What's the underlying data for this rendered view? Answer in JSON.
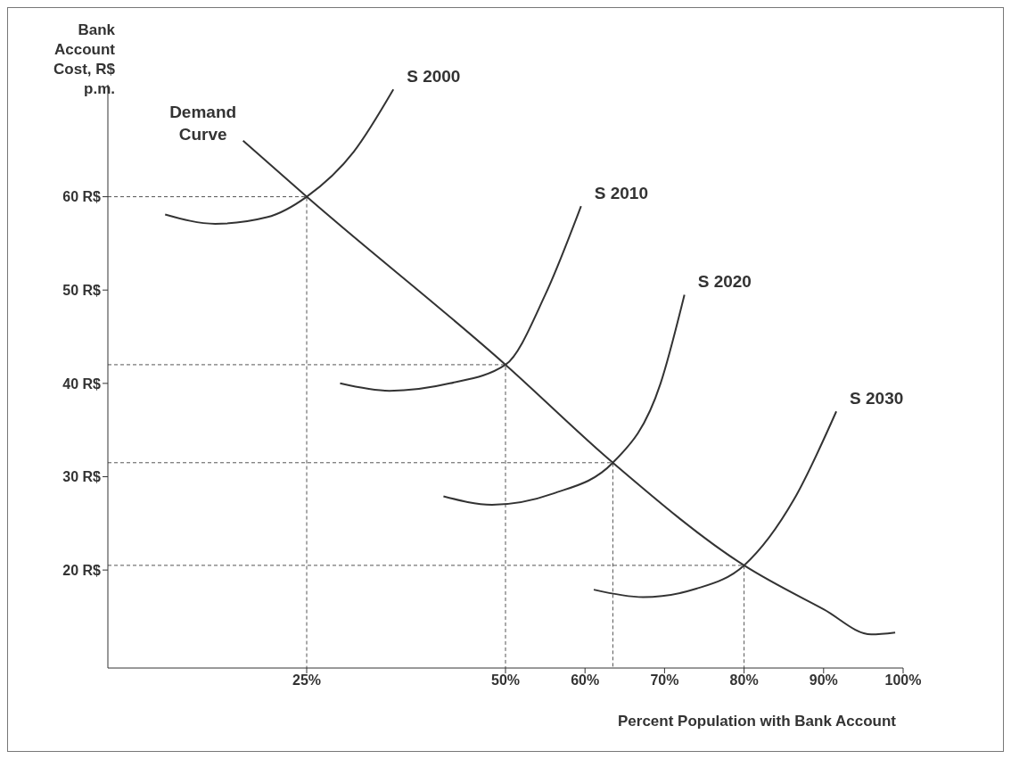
{
  "chart_data": {
    "type": "line",
    "xlabel": "Percent Population with Bank Account",
    "ylabel": "Bank Account Cost, R$ p.m.",
    "xlim": [
      0,
      100
    ],
    "ylim": [
      9.5,
      72
    ],
    "xticks": [
      {
        "value": 25,
        "label": "25%"
      },
      {
        "value": 50,
        "label": "50%"
      },
      {
        "value": 60,
        "label": "60%"
      },
      {
        "value": 70,
        "label": "70%"
      },
      {
        "value": 80,
        "label": "80%"
      },
      {
        "value": 90,
        "label": "90%"
      },
      {
        "value": 100,
        "label": "100%"
      }
    ],
    "yticks": [
      {
        "value": 20,
        "label": "20 R$"
      },
      {
        "value": 30,
        "label": "30 R$"
      },
      {
        "value": 40,
        "label": "40 R$"
      },
      {
        "value": 50,
        "label": "50 R$"
      },
      {
        "value": 60,
        "label": "60 R$"
      }
    ],
    "marker": "none",
    "series": [
      {
        "color": "#555555",
        "line_style": "dashed",
        "x": [
          0,
          25,
          25
        ],
        "values": [
          60,
          60,
          9.5
        ]
      },
      {
        "color": "#555555",
        "line_style": "dashed",
        "x": [
          0,
          50,
          50
        ],
        "values": [
          42,
          42,
          9.5
        ]
      },
      {
        "color": "#555555",
        "line_style": "dashed",
        "x": [
          0,
          63.5,
          63.5
        ],
        "values": [
          31.5,
          31.5,
          9.5
        ]
      },
      {
        "color": "#555555",
        "line_style": "dashed",
        "x": [
          0,
          80,
          80
        ],
        "values": [
          20.5,
          20.5,
          9.5
        ]
      },
      {
        "name": "Demand Curve",
        "color": "#333333",
        "line_style": "solid",
        "x": [
          17,
          25,
          50,
          63.5,
          80,
          90,
          96,
          99
        ],
        "values": [
          66,
          60,
          42,
          31.5,
          20.5,
          15.8,
          13.1,
          13.3
        ]
      },
      {
        "name": "S 2000",
        "color": "#333333",
        "line_style": "solid",
        "x": [
          7.2,
          13.5,
          20,
          25,
          30.9,
          35.9
        ],
        "values": [
          58.1,
          57.1,
          57.8,
          60,
          64.8,
          71.5
        ]
      },
      {
        "name": "S 2010",
        "color": "#333333",
        "line_style": "solid",
        "x": [
          29.2,
          35.4,
          43,
          50,
          55,
          59.5
        ],
        "values": [
          40,
          39.2,
          40,
          42,
          49.5,
          59
        ]
      },
      {
        "name": "S 2020",
        "color": "#333333",
        "line_style": "solid",
        "x": [
          42.2,
          48.3,
          56,
          63.5,
          69.5,
          72.5
        ],
        "values": [
          27.9,
          27,
          28.2,
          31.5,
          40,
          49.5
        ]
      },
      {
        "name": "S 2030",
        "color": "#333333",
        "line_style": "solid",
        "x": [
          61.1,
          67.3,
          74,
          80,
          86.3,
          91.6
        ],
        "values": [
          17.9,
          17.1,
          18,
          20.5,
          27.6,
          37
        ]
      }
    ]
  }
}
